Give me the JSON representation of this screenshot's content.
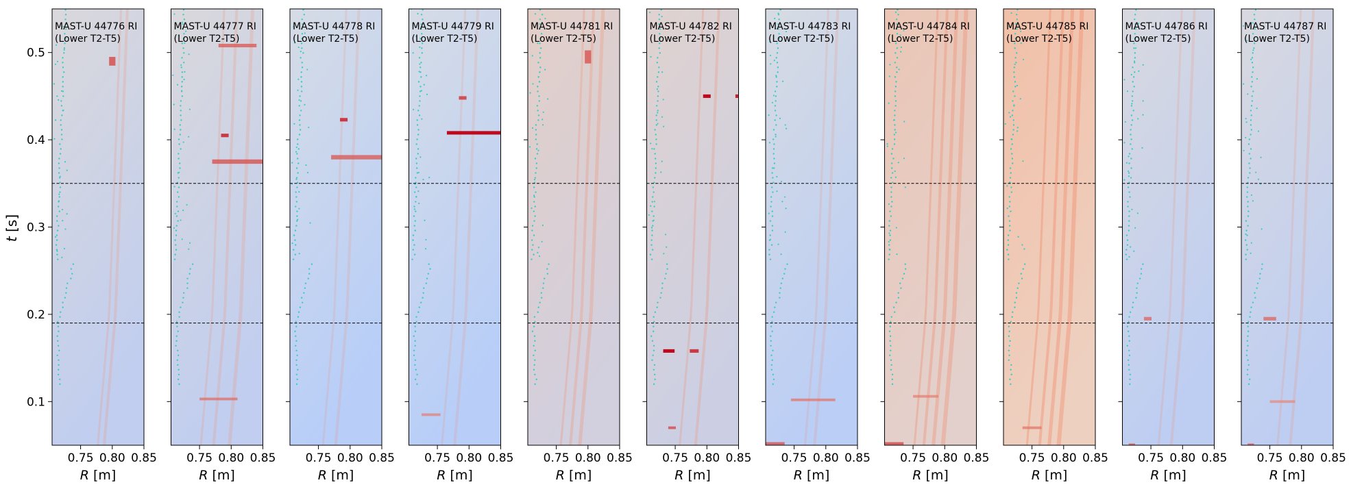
{
  "figure": {
    "ylabel_t": "t",
    "ylabel_unit": " [s]",
    "xlabel_R": "R",
    "xlabel_unit": " [m]"
  },
  "chart_data": {
    "type": "heatmap",
    "xlim": [
      0.705,
      0.85
    ],
    "ylim": [
      0.05,
      0.55
    ],
    "x_ticks": [
      0.75,
      0.8,
      0.85
    ],
    "x_tick_labels": [
      "0.75",
      "0.80",
      "0.85"
    ],
    "y_ticks": [
      0.1,
      0.2,
      0.3,
      0.4,
      0.5
    ],
    "y_tick_labels": [
      "0.1",
      "0.2",
      "0.3",
      "0.4",
      "0.5"
    ],
    "reference_lines_t": [
      0.19,
      0.35
    ],
    "grid": false,
    "colormap": "coolwarm",
    "marker_color": "#3ec9c6",
    "panels": [
      {
        "label_line1": "MAST-U 44776 RI",
        "label_line2": "(Lower T2-T5)",
        "warmth": 0.15,
        "streak_R": [
          0.795,
          0.805
        ],
        "hotspots": [
          {
            "R": 0.8,
            "t": 0.49,
            "w": 0.01,
            "h": 0.01,
            "s": 0.6
          }
        ]
      },
      {
        "label_line1": "MAST-U 44777 RI",
        "label_line2": "(Lower T2-T5)",
        "warmth": 0.15,
        "streak_R": [
          0.77,
          0.79,
          0.815
        ],
        "hotspots": [
          {
            "R": 0.81,
            "t": 0.375,
            "w": 0.08,
            "h": 0.005,
            "s": 0.55
          },
          {
            "R": 0.79,
            "t": 0.405,
            "w": 0.012,
            "h": 0.004,
            "s": 0.8
          },
          {
            "R": 0.81,
            "t": 0.508,
            "w": 0.06,
            "h": 0.004,
            "s": 0.5
          },
          {
            "R": 0.78,
            "t": 0.103,
            "w": 0.06,
            "h": 0.003,
            "s": 0.4
          }
        ]
      },
      {
        "label_line1": "MAST-U 44778 RI",
        "label_line2": "(Lower T2-T5)",
        "warmth": 0.0,
        "streak_R": [
          0.775,
          0.795
        ],
        "hotspots": [
          {
            "R": 0.81,
            "t": 0.38,
            "w": 0.08,
            "h": 0.005,
            "s": 0.5
          },
          {
            "R": 0.79,
            "t": 0.423,
            "w": 0.012,
            "h": 0.004,
            "s": 0.8
          }
        ]
      },
      {
        "label_line1": "MAST-U 44779 RI",
        "label_line2": "(Lower T2-T5)",
        "warmth": 0.0,
        "streak_R": [
          0.775,
          0.795
        ],
        "hotspots": [
          {
            "R": 0.81,
            "t": 0.408,
            "w": 0.09,
            "h": 0.004,
            "s": 1.0
          },
          {
            "R": 0.79,
            "t": 0.448,
            "w": 0.012,
            "h": 0.004,
            "s": 0.7
          },
          {
            "R": 0.74,
            "t": 0.085,
            "w": 0.03,
            "h": 0.003,
            "s": 0.3
          }
        ]
      },
      {
        "label_line1": "MAST-U 44781 RI",
        "label_line2": "(Lower T2-T5)",
        "warmth": 0.45,
        "streak_R": [
          0.775,
          0.79,
          0.805
        ],
        "hotspots": [
          {
            "R": 0.8,
            "t": 0.495,
            "w": 0.01,
            "h": 0.015,
            "s": 0.55
          }
        ]
      },
      {
        "label_line1": "MAST-U 44782 RI",
        "label_line2": "(Lower T2-T5)",
        "warmth": 0.35,
        "streak_R": [
          0.775,
          0.8
        ],
        "hotspots": [
          {
            "R": 0.8,
            "t": 0.45,
            "w": 0.012,
            "h": 0.004,
            "s": 1.0
          },
          {
            "R": 0.85,
            "t": 0.45,
            "w": 0.01,
            "h": 0.004,
            "s": 0.9
          },
          {
            "R": 0.74,
            "t": 0.158,
            "w": 0.018,
            "h": 0.004,
            "s": 1.0
          },
          {
            "R": 0.78,
            "t": 0.158,
            "w": 0.014,
            "h": 0.004,
            "s": 0.8
          },
          {
            "R": 0.745,
            "t": 0.07,
            "w": 0.012,
            "h": 0.003,
            "s": 0.6
          }
        ]
      },
      {
        "label_line1": "MAST-U 44783 RI",
        "label_line2": "(Lower T2-T5)",
        "warmth": 0.05,
        "streak_R": [
          0.785,
          0.8
        ],
        "hotspots": [
          {
            "R": 0.78,
            "t": 0.102,
            "w": 0.07,
            "h": 0.003,
            "s": 0.35
          },
          {
            "R": 0.72,
            "t": 0.052,
            "w": 0.03,
            "h": 0.003,
            "s": 0.55
          }
        ]
      },
      {
        "label_line1": "MAST-U 44784 RI",
        "label_line2": "(Lower T2-T5)",
        "warmth": 0.75,
        "streak_R": [
          0.77,
          0.785,
          0.8,
          0.815
        ],
        "hotspots": [
          {
            "R": 0.72,
            "t": 0.052,
            "w": 0.03,
            "h": 0.003,
            "s": 0.6
          },
          {
            "R": 0.77,
            "t": 0.106,
            "w": 0.04,
            "h": 0.003,
            "s": 0.3
          }
        ]
      },
      {
        "label_line1": "MAST-U 44785 RI",
        "label_line2": "(Lower T2-T5)",
        "warmth": 0.95,
        "streak_R": [
          0.76,
          0.78,
          0.795,
          0.81
        ],
        "hotspots": [
          {
            "R": 0.75,
            "t": 0.07,
            "w": 0.03,
            "h": 0.003,
            "s": 0.35
          }
        ]
      },
      {
        "label_line1": "MAST-U 44786 RI",
        "label_line2": "(Lower T2-T5)",
        "warmth": 0.1,
        "streak_R": [
          0.78,
          0.8
        ],
        "hotspots": [
          {
            "R": 0.745,
            "t": 0.195,
            "w": 0.012,
            "h": 0.004,
            "s": 0.45
          },
          {
            "R": 0.72,
            "t": 0.051,
            "w": 0.01,
            "h": 0.002,
            "s": 0.5
          }
        ]
      },
      {
        "label_line1": "MAST-U 44787 RI",
        "label_line2": "(Lower T2-T5)",
        "warmth": 0.1,
        "streak_R": [
          0.78,
          0.8
        ],
        "hotspots": [
          {
            "R": 0.75,
            "t": 0.195,
            "w": 0.02,
            "h": 0.004,
            "s": 0.45
          },
          {
            "R": 0.72,
            "t": 0.051,
            "w": 0.01,
            "h": 0.002,
            "s": 0.5
          },
          {
            "R": 0.77,
            "t": 0.1,
            "w": 0.04,
            "h": 0.003,
            "s": 0.25
          }
        ]
      }
    ]
  }
}
